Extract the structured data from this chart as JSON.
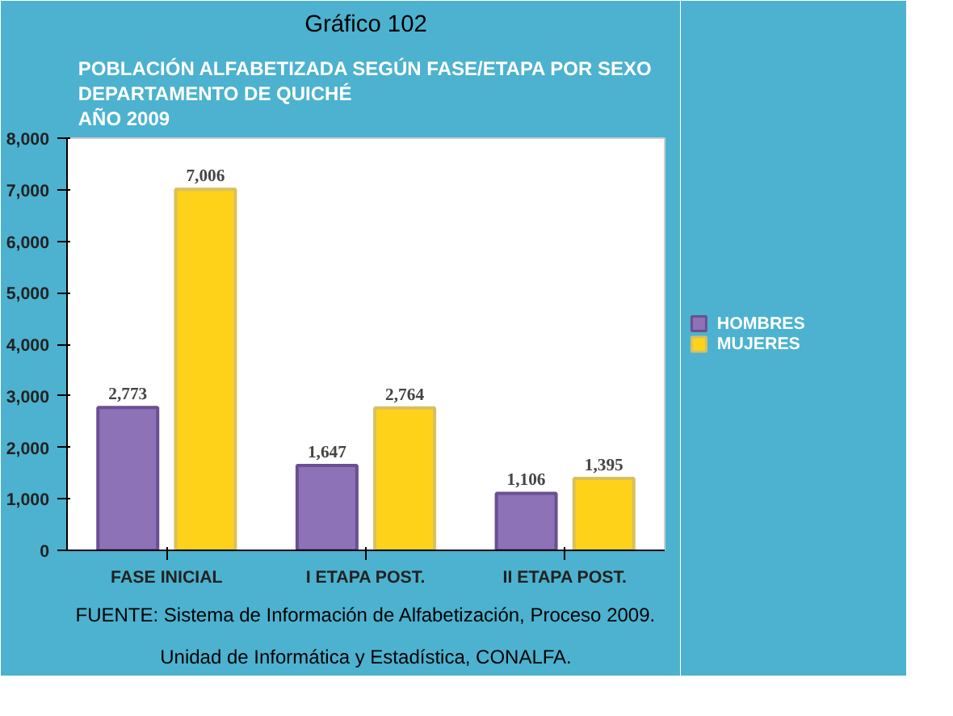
{
  "chart_data": {
    "type": "bar",
    "title": "Gráfico 102",
    "subtitle": "POBLACIÓN ALFABETIZADA SEGÚN FASE/ETAPA POR SEXO\nDEPARTAMENTO DE QUICHÉ\nAÑO 2009",
    "categories": [
      "FASE INICIAL",
      "I ETAPA POST.",
      "II ETAPA POST."
    ],
    "series": [
      {
        "name": "HOMBRES",
        "color": "#8e72b8",
        "values": [
          2773,
          1647,
          1106
        ],
        "value_labels": [
          "2,773",
          "1,647",
          "1,106"
        ]
      },
      {
        "name": "MUJERES",
        "color": "#ffd21a",
        "values": [
          7006,
          2764,
          1395
        ],
        "value_labels": [
          "7,006",
          "2,764",
          "1,395"
        ]
      }
    ],
    "ylim": [
      0,
      8000
    ],
    "yticks": [
      0,
      {
        "value": 1000,
        "label": "1,000"
      },
      {
        "value": 2000,
        "label": "2,000"
      },
      {
        "value": 3000,
        "label": "3,000"
      },
      {
        "value": 4000,
        "label": "4,000"
      },
      {
        "value": 5000,
        "label": "5,000"
      },
      {
        "value": 6000,
        "label": "6,000"
      },
      {
        "value": 7000,
        "label": "7,000"
      },
      {
        "value": 8000,
        "label": "8,000"
      }
    ],
    "legend": "right",
    "annotations": [
      "FUENTE: Sistema de Información de Alfabetización, Proceso 2009.",
      "Unidad de Informática y Estadística, CONALFA."
    ]
  }
}
